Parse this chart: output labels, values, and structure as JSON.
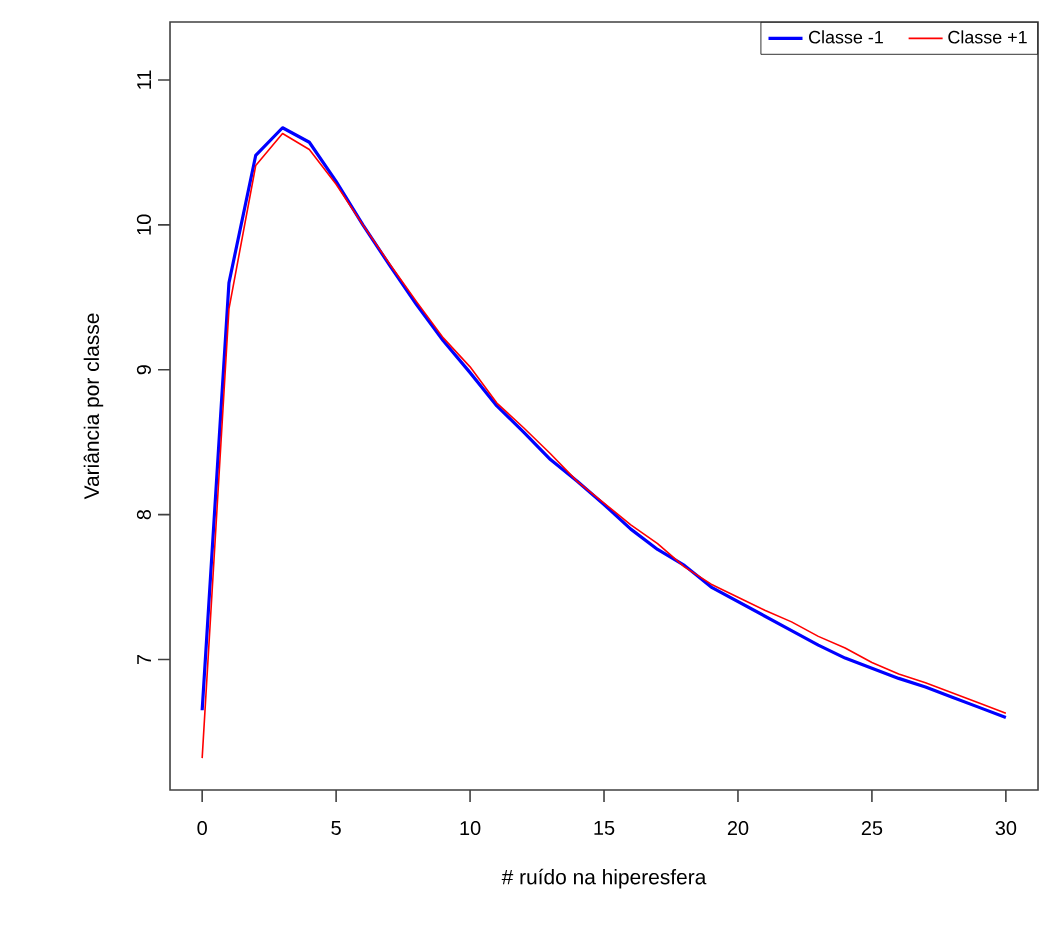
{
  "chart_data": {
    "type": "line",
    "xlabel": "# ruído na hiperesfera",
    "ylabel": "Variância por classe",
    "x": [
      0,
      1,
      2,
      3,
      4,
      5,
      6,
      7,
      8,
      9,
      10,
      11,
      12,
      13,
      14,
      15,
      16,
      17,
      18,
      19,
      20,
      21,
      22,
      23,
      24,
      25,
      26,
      27,
      28,
      29,
      30
    ],
    "series": [
      {
        "name": "Classe -1",
        "color": "#0000ff",
        "values": [
          6.65,
          9.6,
          10.48,
          10.67,
          10.57,
          10.3,
          10.0,
          9.72,
          9.45,
          9.2,
          8.98,
          8.75,
          8.57,
          8.38,
          8.23,
          8.07,
          7.9,
          7.76,
          7.65,
          7.5,
          7.4,
          7.3,
          7.2,
          7.1,
          7.01,
          6.94,
          6.87,
          6.81,
          6.74,
          6.67,
          6.6
        ]
      },
      {
        "name": "Classe +1",
        "color": "#ff0000",
        "values": [
          6.32,
          9.42,
          10.41,
          10.63,
          10.52,
          10.28,
          10.0,
          9.73,
          9.47,
          9.22,
          9.02,
          8.77,
          8.6,
          8.42,
          8.23,
          8.08,
          7.93,
          7.8,
          7.64,
          7.52,
          7.43,
          7.34,
          7.26,
          7.16,
          7.08,
          6.98,
          6.9,
          6.84,
          6.77,
          6.7,
          6.63
        ]
      }
    ],
    "xlim": [
      -1.2,
      31.2
    ],
    "ylim": [
      6.1,
      11.4
    ],
    "xticks": [
      0,
      5,
      10,
      15,
      20,
      25,
      30
    ],
    "yticks": [
      7,
      8,
      9,
      10,
      11
    ],
    "legend": "top right",
    "grid": false,
    "marker": "none",
    "line_style": "solid"
  }
}
